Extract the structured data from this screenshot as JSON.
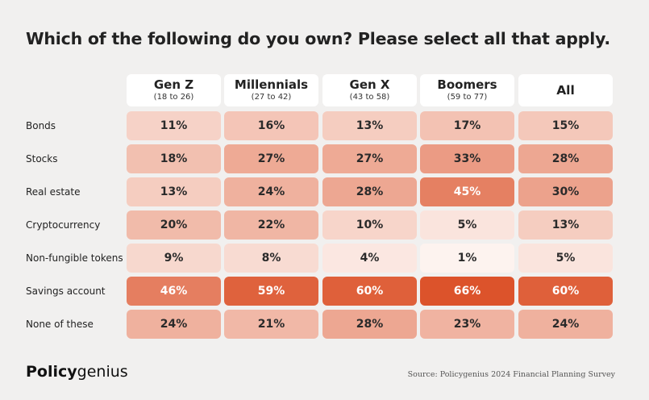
{
  "title": "Which of the following do you own? Please select all that apply.",
  "chart_data": {
    "type": "heatmap",
    "title": "Which of the following do you own? Please select all that apply.",
    "columns": [
      {
        "name": "Gen Z",
        "sub": "(18 to 26)"
      },
      {
        "name": "Millennials",
        "sub": "(27 to 42)"
      },
      {
        "name": "Gen X",
        "sub": "(43 to 58)"
      },
      {
        "name": "Boomers",
        "sub": "(59 to 77)"
      },
      {
        "name": "All",
        "sub": ""
      }
    ],
    "rows": [
      {
        "label": "Bonds",
        "values": [
          11,
          16,
          13,
          17,
          15
        ]
      },
      {
        "label": "Stocks",
        "values": [
          18,
          27,
          27,
          33,
          28
        ]
      },
      {
        "label": "Real estate",
        "values": [
          13,
          24,
          28,
          45,
          30
        ]
      },
      {
        "label": "Cryptocurrency",
        "values": [
          20,
          22,
          10,
          5,
          13
        ]
      },
      {
        "label": "Non-fungible tokens",
        "values": [
          9,
          8,
          4,
          1,
          5
        ]
      },
      {
        "label": "Savings account",
        "values": [
          46,
          59,
          60,
          66,
          60
        ]
      },
      {
        "label": "None of these",
        "values": [
          24,
          21,
          28,
          23,
          24
        ]
      }
    ],
    "value_suffix": "%",
    "color_low": "#fdf3ef",
    "color_high": "#dc532b"
  },
  "footer": {
    "logo_bold": "Policy",
    "logo_regular": "genius",
    "source": "Source: Policygenius 2024 Financial Planning Survey"
  }
}
